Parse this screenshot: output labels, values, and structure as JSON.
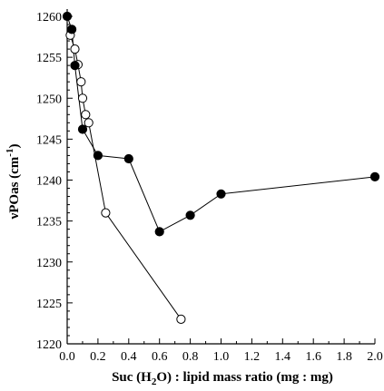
{
  "chart_data": {
    "type": "scatter",
    "title": "",
    "xlabel": {
      "pre": "Suc (H",
      "sub": "2",
      "post": "O) : lipid mass ratio (mg : mg)"
    },
    "ylabel": {
      "pre": "νPOas (cm",
      "sup": "-1",
      "post": ")"
    },
    "xlim": [
      0.0,
      2.0
    ],
    "ylim": [
      1220,
      1260
    ],
    "x_ticks": [
      0.0,
      0.2,
      0.4,
      0.6,
      0.8,
      1.0,
      1.2,
      1.4,
      1.6,
      1.8,
      2.0
    ],
    "x_tick_labels": [
      "0.0",
      "0.2",
      "0.4",
      "0.6",
      "0.8",
      "1.0",
      "1.2",
      "1.4",
      "1.6",
      "1.8",
      "2.0"
    ],
    "y_ticks": [
      1220,
      1225,
      1230,
      1235,
      1240,
      1245,
      1250,
      1255,
      1260
    ],
    "y_tick_labels": [
      "1220",
      "1225",
      "1230",
      "1235",
      "1240",
      "1245",
      "1250",
      "1255",
      "1260"
    ],
    "grid": false,
    "series": [
      {
        "marker": "filled-circle",
        "color": "#000000",
        "x": [
          0.0,
          0.03,
          0.05,
          0.1,
          0.2,
          0.4,
          0.6,
          0.8,
          1.0,
          2.0
        ],
        "y": [
          1260.0,
          1258.4,
          1254.0,
          1246.2,
          1243.0,
          1242.6,
          1233.7,
          1235.7,
          1238.3,
          1240.4
        ]
      },
      {
        "marker": "open-circle",
        "color": "#000000",
        "x": [
          0.02,
          0.05,
          0.07,
          0.09,
          0.1,
          0.12,
          0.14,
          0.25,
          0.74
        ],
        "y": [
          1257.7,
          1256.0,
          1254.1,
          1252.0,
          1250.0,
          1248.0,
          1247.0,
          1236.0,
          1223.0
        ]
      }
    ]
  }
}
